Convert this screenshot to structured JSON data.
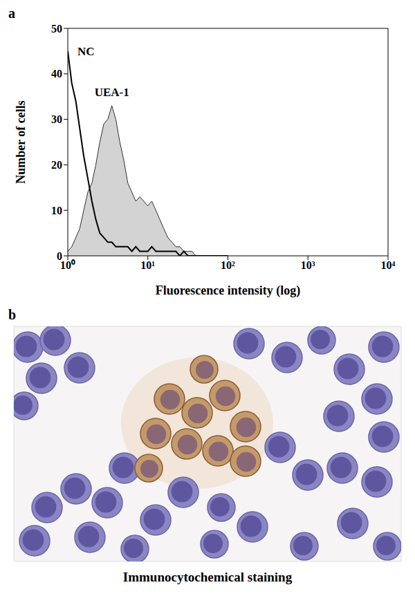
{
  "chart_data": {
    "type": "histogram",
    "title": "a",
    "x_label": "Fluorescence intensity (log)",
    "y_label": "Number of cells",
    "log": "x",
    "grid": false,
    "xlim": [
      1,
      10000
    ],
    "xticks": [
      {
        "value": 1,
        "label": "10⁰"
      },
      {
        "value": 10,
        "label": "10¹"
      },
      {
        "value": 100,
        "label": "10²"
      },
      {
        "value": 1000,
        "label": "10³"
      },
      {
        "value": 10000,
        "label": "10⁴"
      }
    ],
    "ylim": [
      0,
      50
    ],
    "yticks": [
      0,
      10,
      20,
      30,
      40,
      50
    ],
    "x": [
      1,
      1.12,
      1.26,
      1.41,
      1.58,
      1.78,
      2,
      2.24,
      2.51,
      2.82,
      3.16,
      3.55,
      3.98,
      4.47,
      5.01,
      5.62,
      6.31,
      7.08,
      7.94,
      8.91,
      10,
      11.2,
      12.6,
      14.1,
      15.8,
      17.8,
      20,
      22.4,
      25.1,
      28.2,
      31.6,
      35.5,
      39.8,
      44.7,
      50.1,
      56.2,
      63.1,
      70.8,
      79.4,
      89.1,
      100
    ],
    "series": [
      {
        "name": "NC",
        "type": "line",
        "color": "#000000",
        "values": [
          45,
          38,
          34,
          28,
          22,
          17,
          12,
          8,
          5,
          4,
          3,
          3,
          2,
          2,
          2,
          2,
          1,
          2,
          1,
          1,
          1,
          2,
          1,
          1,
          1,
          1,
          1,
          1,
          0,
          1,
          0,
          0,
          0,
          0,
          0,
          0,
          0,
          0,
          0,
          0,
          0
        ]
      },
      {
        "name": "UEA-1",
        "type": "area",
        "color": "#d3d3d3",
        "values": [
          1,
          2,
          4,
          6,
          10,
          14,
          16,
          20,
          25,
          29,
          30,
          33,
          30,
          25,
          21,
          16,
          14,
          12,
          13,
          12,
          11,
          12,
          10,
          8,
          6,
          4,
          3,
          2,
          2,
          1,
          1,
          1,
          0,
          0,
          0,
          0,
          0,
          0,
          0,
          0,
          0
        ]
      }
    ]
  },
  "panel_b": {
    "label": "b",
    "caption": "Immunocytochemical staining"
  }
}
